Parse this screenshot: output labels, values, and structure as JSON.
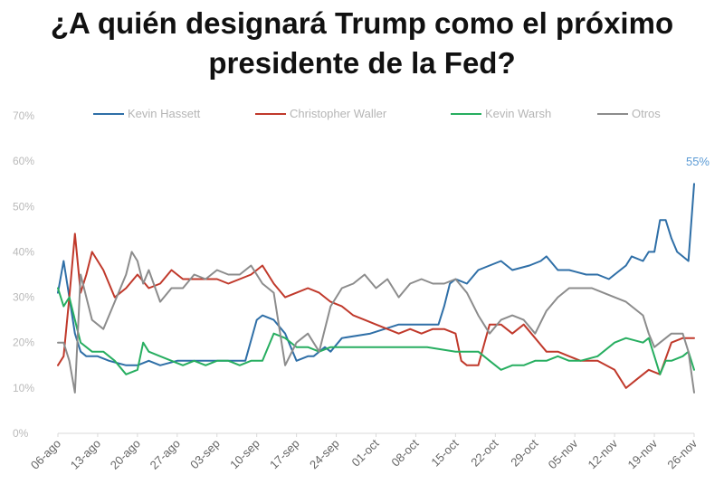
{
  "chart_data": {
    "type": "line",
    "title_line1": "¿A quién designará Trump como el próximo",
    "title_line2": "presidente de la Fed?",
    "xlabel": "",
    "ylabel": "",
    "ylim": [
      0,
      70
    ],
    "yticks": [
      "0%",
      "10%",
      "20%",
      "30%",
      "40%",
      "50%",
      "60%",
      "70%"
    ],
    "xticks": [
      "06-ago",
      "13-ago",
      "20-ago",
      "27-ago",
      "03-sep",
      "10-sep",
      "17-sep",
      "24-sep",
      "01-oct",
      "08-oct",
      "15-oct",
      "22-oct",
      "29-oct",
      "05-nov",
      "12-nov",
      "19-nov",
      "26-nov"
    ],
    "x_range_days": [
      0,
      112
    ],
    "end_label": "55%",
    "series": [
      {
        "name": "Kevin Hassett",
        "color": "#2f6fa7",
        "x": [
          0,
          1,
          2,
          3,
          4,
          5,
          7,
          9,
          12,
          14,
          16,
          18,
          21,
          24,
          27,
          30,
          33,
          35,
          36,
          38,
          40,
          42,
          44,
          45,
          47,
          48,
          50,
          55,
          60,
          64,
          67,
          68,
          69,
          70,
          72,
          74,
          76,
          78,
          80,
          83,
          85,
          86,
          88,
          90,
          93,
          95,
          97,
          99,
          100,
          101,
          103,
          104,
          105,
          106,
          107,
          108,
          109,
          110,
          111,
          112
        ],
        "values": [
          31,
          38,
          30,
          22,
          18,
          17,
          17,
          16,
          15,
          15,
          16,
          15,
          16,
          16,
          16,
          16,
          16,
          25,
          26,
          25,
          22,
          16,
          17,
          17,
          19,
          18,
          21,
          22,
          24,
          24,
          24,
          28,
          33,
          34,
          33,
          36,
          37,
          38,
          36,
          37,
          38,
          39,
          36,
          36,
          35,
          35,
          34,
          36,
          37,
          39,
          38,
          40,
          40,
          47,
          47,
          43,
          40,
          39,
          38,
          55
        ]
      },
      {
        "name": "Christopher Waller",
        "color": "#c0392b",
        "x": [
          0,
          1,
          2,
          3,
          4,
          5,
          6,
          8,
          10,
          12,
          14,
          16,
          18,
          20,
          22,
          24,
          26,
          28,
          30,
          32,
          34,
          36,
          38,
          40,
          42,
          44,
          46,
          48,
          50,
          52,
          54,
          56,
          58,
          60,
          62,
          64,
          66,
          68,
          70,
          71,
          72,
          74,
          76,
          78,
          80,
          82,
          84,
          86,
          88,
          90,
          92,
          95,
          98,
          100,
          102,
          104,
          106,
          108,
          110,
          112
        ],
        "values": [
          15,
          17,
          30,
          44,
          31,
          35,
          40,
          36,
          30,
          32,
          35,
          32,
          33,
          36,
          34,
          34,
          34,
          34,
          33,
          34,
          35,
          37,
          33,
          30,
          31,
          32,
          31,
          29,
          28,
          26,
          25,
          24,
          23,
          22,
          23,
          22,
          23,
          23,
          22,
          16,
          15,
          15,
          24,
          24,
          22,
          24,
          21,
          18,
          18,
          17,
          16,
          16,
          14,
          10,
          12,
          14,
          13,
          20,
          21,
          21
        ]
      },
      {
        "name": "Kevin Warsh",
        "color": "#27ae60",
        "x": [
          0,
          1,
          2,
          3,
          4,
          6,
          8,
          10,
          12,
          14,
          15,
          16,
          18,
          20,
          22,
          24,
          26,
          28,
          30,
          32,
          34,
          36,
          38,
          40,
          42,
          44,
          46,
          48,
          50,
          55,
          60,
          65,
          70,
          72,
          74,
          76,
          78,
          80,
          82,
          84,
          86,
          88,
          90,
          92,
          95,
          98,
          100,
          103,
          104,
          105,
          106,
          107,
          108,
          110,
          111,
          112
        ],
        "values": [
          32,
          28,
          30,
          25,
          20,
          18,
          18,
          16,
          13,
          14,
          20,
          18,
          17,
          16,
          15,
          16,
          15,
          16,
          16,
          15,
          16,
          16,
          22,
          21,
          19,
          19,
          18,
          19,
          19,
          19,
          19,
          19,
          18,
          18,
          18,
          16,
          14,
          15,
          15,
          16,
          16,
          17,
          16,
          16,
          17,
          20,
          21,
          20,
          21,
          17,
          13,
          16,
          16,
          17,
          18,
          14
        ]
      },
      {
        "name": "Otros",
        "color": "#8c8c8c",
        "x": [
          0,
          1,
          2,
          3,
          4,
          5,
          6,
          8,
          10,
          12,
          13,
          14,
          15,
          16,
          18,
          20,
          22,
          24,
          26,
          28,
          30,
          32,
          34,
          36,
          38,
          40,
          42,
          44,
          46,
          48,
          50,
          52,
          54,
          56,
          58,
          60,
          62,
          64,
          66,
          68,
          70,
          72,
          74,
          76,
          78,
          80,
          82,
          84,
          86,
          88,
          90,
          92,
          94,
          96,
          98,
          100,
          103,
          104,
          105,
          106,
          108,
          110,
          111,
          112
        ],
        "values": [
          20,
          20,
          16,
          9,
          35,
          30,
          25,
          23,
          29,
          35,
          40,
          38,
          33,
          36,
          29,
          32,
          32,
          35,
          34,
          36,
          35,
          35,
          37,
          33,
          31,
          15,
          20,
          22,
          18,
          28,
          32,
          33,
          35,
          32,
          34,
          30,
          33,
          34,
          33,
          33,
          34,
          31,
          26,
          22,
          25,
          26,
          25,
          22,
          27,
          30,
          32,
          32,
          32,
          31,
          30,
          29,
          26,
          22,
          19,
          20,
          22,
          22,
          18,
          9
        ]
      }
    ]
  }
}
